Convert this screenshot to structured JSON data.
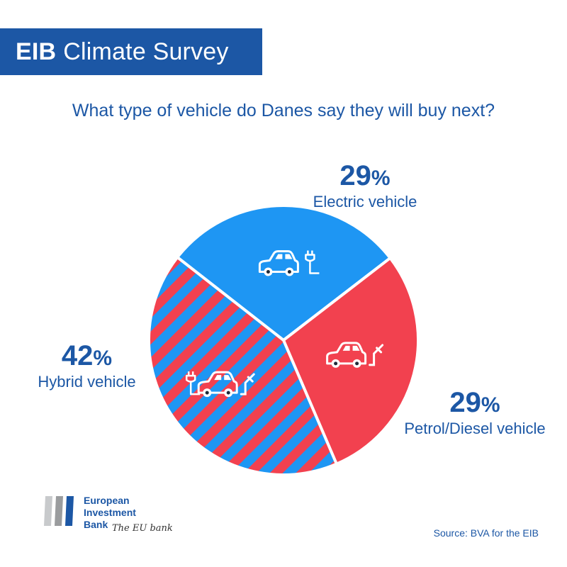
{
  "header": {
    "title_strong": "EIB",
    "title_rest": "Climate Survey"
  },
  "question": "What type of vehicle do Danes say they will buy next?",
  "colors": {
    "brand_blue": "#1c57a5",
    "electric": "#1e96f3",
    "petrol": "#f2414f",
    "hybrid_stripe_a": "#1e96f3",
    "hybrid_stripe_b": "#f2414f"
  },
  "icons": {
    "electric": "car-with-plug-icon",
    "petrol": "car-with-fuel-nozzle-icon",
    "hybrid": "car-with-plug-and-fuel-nozzle-icon"
  },
  "chart_data": {
    "type": "pie",
    "title": "What type of vehicle do Danes say they will buy next?",
    "unit": "%",
    "slices": [
      {
        "label": "Electric vehicle",
        "value": 29,
        "color": "#1e96f3",
        "pattern": "solid"
      },
      {
        "label": "Petrol/Diesel vehicle",
        "value": 29,
        "color": "#f2414f",
        "pattern": "solid"
      },
      {
        "label": "Hybrid vehicle",
        "value": 42,
        "color": "#1e96f3",
        "pattern": "blue-red-diagonal-stripes"
      }
    ]
  },
  "labels": {
    "electric": {
      "pct": "29",
      "sym": "%",
      "name": "Electric vehicle"
    },
    "hybrid": {
      "pct": "42",
      "sym": "%",
      "name": "Hybrid vehicle"
    },
    "petrol": {
      "pct": "29",
      "sym": "%",
      "name": "Petrol/Diesel vehicle"
    }
  },
  "logo": {
    "line1": "European",
    "line2": "Investment",
    "line3": "Bank",
    "tagline": "The EU bank"
  },
  "source": "Source: BVA for the EIB"
}
